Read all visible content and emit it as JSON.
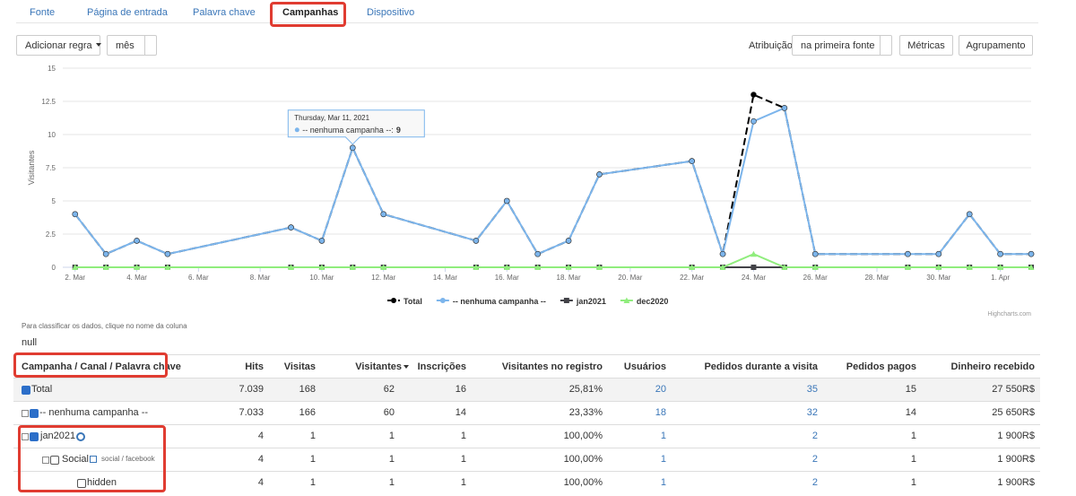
{
  "tabs": [
    "Fonte",
    "Página de entrada",
    "Palavra chave",
    "Campanhas",
    "Dispositivo"
  ],
  "toolbar": {
    "add_rule": "Adicionar regra",
    "period": "mês",
    "attribution_label": "Atribuição",
    "attribution": "na primeira fonte",
    "metrics": "Métricas",
    "grouping": "Agrupamento"
  },
  "chart_data": {
    "type": "line",
    "y_label": "Visitantes",
    "credits": "Highcharts.com",
    "xlim": [
      1.6,
      33.0
    ],
    "xticks": [
      {
        "value": 2,
        "label": "2. Mar"
      },
      {
        "value": 4,
        "label": "4. Mar"
      },
      {
        "value": 6,
        "label": "6. Mar"
      },
      {
        "value": 8,
        "label": "8. Mar"
      },
      {
        "value": 10,
        "label": "10. Mar"
      },
      {
        "value": 12,
        "label": "12. Mar"
      },
      {
        "value": 14,
        "label": "14. Mar"
      },
      {
        "value": 16,
        "label": "16. Mar"
      },
      {
        "value": 18,
        "label": "18. Mar"
      },
      {
        "value": 20,
        "label": "20. Mar"
      },
      {
        "value": 22,
        "label": "22. Mar"
      },
      {
        "value": 24,
        "label": "24. Mar"
      },
      {
        "value": 26,
        "label": "26. Mar"
      },
      {
        "value": 28,
        "label": "28. Mar"
      },
      {
        "value": 30,
        "label": "30. Mar"
      },
      {
        "value": 32,
        "label": "1. Apr"
      }
    ],
    "ylim": [
      0,
      15
    ],
    "yticks": [
      0,
      2.5,
      5,
      7.5,
      10,
      12.5,
      15
    ],
    "grid": true,
    "x": [
      2,
      3,
      4,
      5,
      9,
      10,
      11,
      12,
      15,
      16,
      17,
      18,
      19,
      22,
      23,
      24,
      25,
      26,
      29,
      30,
      31,
      32,
      33
    ],
    "series": [
      {
        "name": "Total",
        "color": "#000000",
        "marker": "circle",
        "dash": true,
        "values": [
          4,
          1,
          2,
          1,
          3,
          2,
          9,
          4,
          2,
          5,
          1,
          2,
          7,
          8,
          1,
          13,
          12,
          1,
          1,
          1,
          4,
          1,
          1
        ]
      },
      {
        "name": "-- nenhuma campanha --",
        "color": "#7cb5ec",
        "marker": "circle",
        "dash": false,
        "values": [
          4,
          1,
          2,
          1,
          3,
          2,
          9,
          4,
          2,
          5,
          1,
          2,
          7,
          8,
          1,
          11,
          12,
          1,
          1,
          1,
          4,
          1,
          1
        ]
      },
      {
        "name": "jan2021",
        "color": "#434348",
        "marker": "square",
        "dash": false,
        "values": [
          0,
          0,
          0,
          0,
          0,
          0,
          0,
          0,
          0,
          0,
          0,
          0,
          0,
          0,
          0,
          0,
          0,
          0,
          0,
          0,
          0,
          0,
          0
        ]
      },
      {
        "name": "dec2020",
        "color": "#90ed7d",
        "marker": "triangle",
        "dash": false,
        "values": [
          0,
          0,
          0,
          0,
          0,
          0,
          0,
          0,
          0,
          0,
          0,
          0,
          0,
          0,
          0,
          1,
          0,
          0,
          0,
          0,
          0,
          0,
          0
        ]
      }
    ],
    "tooltip": {
      "title": "Thursday, Mar 11, 2021",
      "label": "-- nenhuma campanha --:",
      "value": 9
    }
  },
  "table": {
    "note": "Para classificar os dados, clique no nome da coluna",
    "caption": "null",
    "headers": [
      "Campanha / Canal / Palavra chave",
      "Hits",
      "Visitas",
      "Visitantes",
      "Inscrições",
      "Visitantes no registro",
      "Usuários",
      "Pedidos durante a visita",
      "Pedidos pagos",
      "Dinheiro recebido"
    ],
    "rows": [
      {
        "label": "Total",
        "cells": [
          "7.039",
          "168",
          "62",
          "16",
          "25,81%",
          "20",
          "35",
          "15",
          "27 550R$"
        ]
      },
      {
        "label": "-- nenhuma campanha --",
        "cells": [
          "7.033",
          "166",
          "60",
          "14",
          "23,33%",
          "18",
          "32",
          "14",
          "25 650R$"
        ]
      },
      {
        "label": "jan2021",
        "cells": [
          "4",
          "1",
          "1",
          "1",
          "100,00%",
          "1",
          "2",
          "1",
          "1 900R$"
        ]
      },
      {
        "label": "Social",
        "tag": "social / facebook",
        "cells": [
          "4",
          "1",
          "1",
          "1",
          "100,00%",
          "1",
          "2",
          "1",
          "1 900R$"
        ]
      },
      {
        "label": "hidden",
        "cells": [
          "4",
          "1",
          "1",
          "1",
          "100,00%",
          "1",
          "2",
          "1",
          "1 900R$"
        ]
      }
    ]
  }
}
